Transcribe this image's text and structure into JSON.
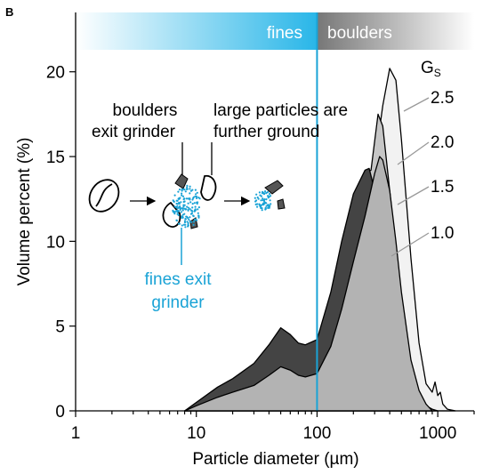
{
  "panel_label": "B",
  "chart_data": {
    "type": "area",
    "xscale": "log",
    "xlim": [
      1,
      2000
    ],
    "ylim": [
      0,
      23.5
    ],
    "xlabel": "Particle diameter (µm)",
    "ylabel": "Volume percent (%)",
    "x_ticks": [
      1,
      10,
      100,
      1000
    ],
    "x_tick_labels": [
      "1",
      "10",
      "100",
      "1000"
    ],
    "y_ticks": [
      0,
      5,
      10,
      15,
      20
    ],
    "y_tick_labels": [
      "0",
      "5",
      "10",
      "15",
      "20"
    ],
    "regions": [
      {
        "label": "fines",
        "range": [
          1,
          100
        ],
        "color": "#29b6e8"
      },
      {
        "label": "boulders",
        "range": [
          100,
          2000
        ],
        "color": "#888888"
      }
    ],
    "divider_x": 100,
    "legend_title": "Gs",
    "series": [
      {
        "name": "2.5",
        "color": "#f2f2f2",
        "x": [
          8,
          10,
          15,
          20,
          30,
          40,
          50,
          60,
          70,
          80,
          100,
          130,
          160,
          200,
          250,
          300,
          350,
          400,
          450,
          500,
          600,
          700,
          800,
          900,
          950,
          1000,
          1050,
          1100,
          1200,
          1400
        ],
        "y": [
          0,
          0.4,
          1.1,
          1.5,
          2.1,
          2.9,
          3.7,
          3.5,
          3.1,
          3.0,
          3.4,
          5.5,
          8.0,
          10.7,
          12.8,
          14.5,
          18.0,
          20.2,
          19.5,
          16.0,
          9.0,
          4.0,
          1.6,
          1.1,
          1.7,
          0.9,
          1.1,
          0.4,
          0.1,
          0
        ]
      },
      {
        "name": "2.0",
        "color": "#c6c6c6",
        "x": [
          8,
          10,
          15,
          20,
          30,
          40,
          50,
          60,
          70,
          80,
          100,
          130,
          160,
          200,
          250,
          280,
          320,
          350,
          400,
          450,
          500,
          600,
          700,
          800,
          900,
          1000
        ],
        "y": [
          0,
          0.4,
          1.2,
          1.6,
          2.4,
          3.4,
          4.3,
          4.0,
          3.5,
          3.4,
          3.8,
          6.5,
          9.5,
          12.3,
          14.0,
          14.2,
          17.5,
          16.8,
          13.0,
          9.5,
          6.0,
          2.5,
          1.0,
          0.3,
          0.1,
          0
        ]
      },
      {
        "name": "1.5",
        "color": "#444444",
        "x": [
          8,
          10,
          15,
          20,
          30,
          40,
          50,
          60,
          70,
          80,
          100,
          130,
          160,
          200,
          250,
          270,
          300,
          350,
          400,
          450,
          500,
          600,
          700,
          800,
          900
        ],
        "y": [
          0,
          0.5,
          1.4,
          1.9,
          2.8,
          3.9,
          4.9,
          4.5,
          4.0,
          3.9,
          4.2,
          7.0,
          10.0,
          12.8,
          14.2,
          14.3,
          13.0,
          11.0,
          8.0,
          6.0,
          4.0,
          1.6,
          0.5,
          0.15,
          0
        ]
      },
      {
        "name": "1.0",
        "color": "#b3b3b3",
        "x": [
          8,
          10,
          15,
          20,
          30,
          40,
          50,
          60,
          70,
          80,
          100,
          130,
          160,
          200,
          250,
          300,
          330,
          350,
          400,
          450,
          500,
          600,
          700,
          800,
          900
        ],
        "y": [
          0,
          0.3,
          0.8,
          1.1,
          1.5,
          2.1,
          2.6,
          2.4,
          2.1,
          2.0,
          2.2,
          3.8,
          6.0,
          8.8,
          11.5,
          14.0,
          15.0,
          14.8,
          13.0,
          10.0,
          7.0,
          3.0,
          1.2,
          0.4,
          0
        ]
      }
    ],
    "annotations": [
      "boulders exit grinder",
      "large particles are further ground",
      "fines exit grinder"
    ]
  },
  "annotations": {
    "boulders_l1": "boulders",
    "boulders_l2": "exit grinder",
    "large_l1": "large particles are",
    "large_l2": "further ground",
    "fines_l1": "fines exit",
    "fines_l2": "grinder"
  }
}
